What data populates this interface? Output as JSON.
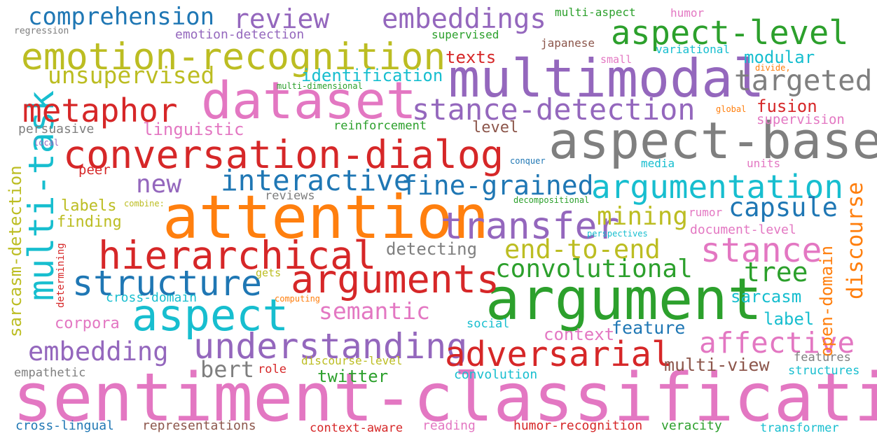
{
  "colors": {
    "blue": "#1f77b4",
    "orange": "#ff7f0e",
    "green": "#2ca02c",
    "red": "#d62728",
    "purple": "#9467bd",
    "brown": "#8c564b",
    "pink": "#e377c2",
    "gray": "#7f7f7f",
    "olive": "#bcbd22",
    "cyan": "#17becf"
  },
  "words": [
    {
      "text": "sentiment-classification",
      "color": "pink"
    },
    {
      "text": "attention",
      "color": "orange"
    },
    {
      "text": "argument",
      "color": "green"
    },
    {
      "text": "multimodal",
      "color": "purple"
    },
    {
      "text": "aspect-based",
      "color": "gray"
    },
    {
      "text": "dataset",
      "color": "pink"
    },
    {
      "text": "conversation-dialog",
      "color": "red"
    },
    {
      "text": "emotion-recognition",
      "color": "olive"
    },
    {
      "text": "hierarchical",
      "color": "red"
    },
    {
      "text": "aspect",
      "color": "cyan"
    },
    {
      "text": "arguments",
      "color": "red"
    },
    {
      "text": "transfer",
      "color": "purple"
    },
    {
      "text": "structure",
      "color": "blue"
    },
    {
      "text": "understanding",
      "color": "purple"
    },
    {
      "text": "argumentation",
      "color": "cyan"
    },
    {
      "text": "adversarial",
      "color": "red"
    },
    {
      "text": "multi-task",
      "color": "cyan"
    },
    {
      "text": "aspect-level",
      "color": "green"
    },
    {
      "text": "metaphor",
      "color": "red"
    },
    {
      "text": "stance-detection",
      "color": "purple"
    },
    {
      "text": "stance",
      "color": "pink"
    },
    {
      "text": "interactive",
      "color": "blue"
    },
    {
      "text": "fine-grained",
      "color": "blue"
    },
    {
      "text": "targeted",
      "color": "gray"
    },
    {
      "text": "comprehension",
      "color": "blue"
    },
    {
      "text": "embeddings",
      "color": "purple"
    },
    {
      "text": "review",
      "color": "purple"
    },
    {
      "text": "affective",
      "color": "pink"
    },
    {
      "text": "capsule",
      "color": "blue"
    },
    {
      "text": "end-to-end",
      "color": "olive"
    },
    {
      "text": "embedding",
      "color": "purple"
    },
    {
      "text": "unsupervised",
      "color": "olive"
    },
    {
      "text": "convolutional",
      "color": "green"
    },
    {
      "text": "semantic",
      "color": "pink"
    },
    {
      "text": "mining",
      "color": "olive"
    },
    {
      "text": "discourse",
      "color": "orange"
    },
    {
      "text": "new",
      "color": "purple"
    },
    {
      "text": "tree",
      "color": "green"
    },
    {
      "text": "bert",
      "color": "gray"
    },
    {
      "text": "multi-view",
      "color": "brown"
    },
    {
      "text": "identification",
      "color": "cyan"
    },
    {
      "text": "detecting",
      "color": "gray"
    },
    {
      "text": "feature",
      "color": "blue"
    },
    {
      "text": "sarcasm-detection",
      "color": "olive"
    },
    {
      "text": "open-domain",
      "color": "orange"
    },
    {
      "text": "linguistic",
      "color": "pink"
    },
    {
      "text": "context",
      "color": "pink"
    },
    {
      "text": "fusion",
      "color": "red"
    },
    {
      "text": "modular",
      "color": "cyan"
    },
    {
      "text": "texts",
      "color": "red"
    },
    {
      "text": "twitter",
      "color": "green"
    },
    {
      "text": "sarcasm",
      "color": "cyan"
    },
    {
      "text": "label",
      "color": "cyan"
    },
    {
      "text": "corpora",
      "color": "pink"
    },
    {
      "text": "labels",
      "color": "olive"
    },
    {
      "text": "finding",
      "color": "olive"
    },
    {
      "text": "level",
      "color": "brown"
    },
    {
      "text": "peer",
      "color": "red"
    },
    {
      "text": "persuasive",
      "color": "gray"
    },
    {
      "text": "reinforcement",
      "color": "green"
    },
    {
      "text": "supervision",
      "color": "pink"
    },
    {
      "text": "emotion-detection",
      "color": "purple"
    },
    {
      "text": "cross-domain",
      "color": "cyan"
    },
    {
      "text": "document-level",
      "color": "pink"
    },
    {
      "text": "convolution",
      "color": "cyan"
    },
    {
      "text": "cross-lingual",
      "color": "blue"
    },
    {
      "text": "representations",
      "color": "brown"
    },
    {
      "text": "context-aware",
      "color": "red"
    },
    {
      "text": "humor-recognition",
      "color": "red"
    },
    {
      "text": "veracity",
      "color": "green"
    },
    {
      "text": "transformer",
      "color": "cyan"
    },
    {
      "text": "reading",
      "color": "pink"
    },
    {
      "text": "empathetic",
      "color": "gray"
    },
    {
      "text": "role",
      "color": "red"
    },
    {
      "text": "discourse-level",
      "color": "olive"
    },
    {
      "text": "features",
      "color": "gray"
    },
    {
      "text": "structures",
      "color": "cyan"
    },
    {
      "text": "social",
      "color": "cyan"
    },
    {
      "text": "reviews",
      "color": "gray"
    },
    {
      "text": "media",
      "color": "cyan"
    },
    {
      "text": "units",
      "color": "pink"
    },
    {
      "text": "rumor",
      "color": "pink"
    },
    {
      "text": "variational",
      "color": "cyan"
    },
    {
      "text": "japanese",
      "color": "brown"
    },
    {
      "text": "supervised",
      "color": "green"
    },
    {
      "text": "multi-aspect",
      "color": "green"
    },
    {
      "text": "humor",
      "color": "pink"
    },
    {
      "text": "small",
      "color": "pink"
    },
    {
      "text": "gets",
      "color": "olive"
    },
    {
      "text": "determining",
      "color": "red"
    },
    {
      "text": "regression",
      "color": "gray"
    },
    {
      "text": "multi-dimensional",
      "color": "green"
    },
    {
      "text": "local",
      "color": "purple"
    },
    {
      "text": "combine:",
      "color": "olive"
    },
    {
      "text": "conquer",
      "color": "blue"
    },
    {
      "text": "decompositional",
      "color": "green"
    },
    {
      "text": "perspectives",
      "color": "cyan"
    },
    {
      "text": "computing",
      "color": "orange"
    },
    {
      "text": "global",
      "color": "orange"
    },
    {
      "text": "divide,",
      "color": "orange"
    }
  ]
}
